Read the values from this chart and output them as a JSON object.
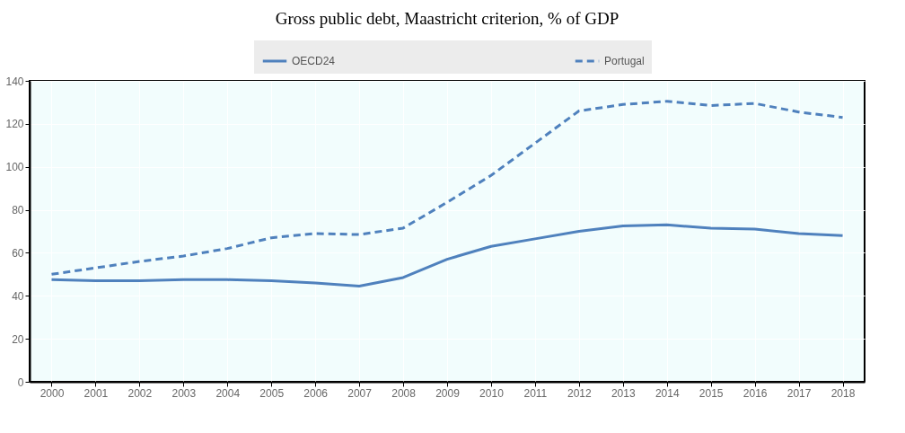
{
  "chart_data": {
    "type": "line",
    "title": "Gross public debt, Maastricht criterion, % of GDP",
    "categories": [
      "2000",
      "2001",
      "2002",
      "2003",
      "2004",
      "2005",
      "2006",
      "2007",
      "2008",
      "2009",
      "2010",
      "2011",
      "2012",
      "2013",
      "2014",
      "2015",
      "2016",
      "2017",
      "2018"
    ],
    "series": [
      {
        "name": "OECD24",
        "color": "#4f81bd",
        "line_style": "solid",
        "values": [
          47.5,
          47,
          47,
          47.5,
          47.5,
          47,
          46,
          44.5,
          48.5,
          57,
          63,
          66.5,
          70,
          72.5,
          73,
          71.5,
          71,
          69,
          68
        ]
      },
      {
        "name": "Portugal",
        "color": "#4f81bd",
        "line_style": "dashed",
        "values": [
          50,
          53,
          56,
          58.5,
          62,
          67,
          69,
          68.5,
          71.5,
          83.5,
          96,
          111,
          126,
          129,
          130.5,
          128.5,
          129.5,
          125.5,
          123
        ]
      }
    ],
    "ylim": [
      0,
      140
    ],
    "yticks": [
      0,
      20,
      40,
      60,
      80,
      100,
      120,
      140
    ],
    "grid": true,
    "legend": "top"
  }
}
